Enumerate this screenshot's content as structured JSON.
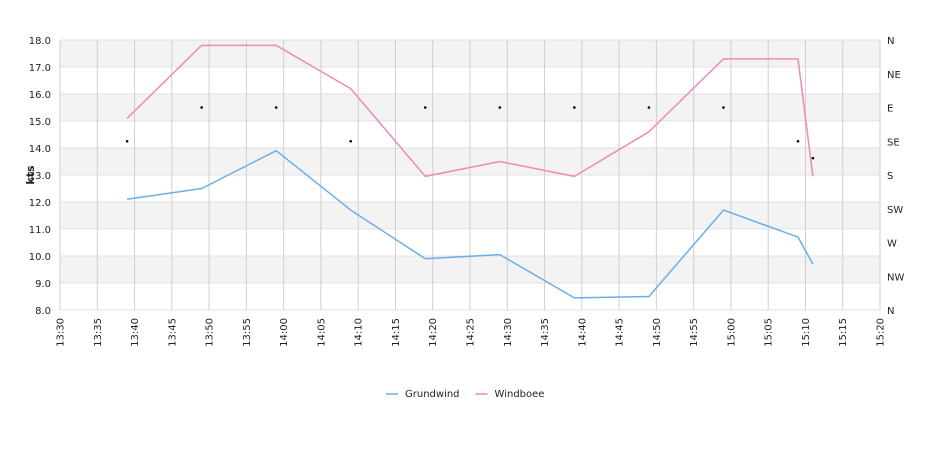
{
  "chart_data": {
    "type": "line",
    "ylabel": "kts",
    "ylim": [
      8.0,
      18.0
    ],
    "y_ticks": [
      "8.0",
      "9.0",
      "10.0",
      "11.0",
      "12.0",
      "13.0",
      "14.0",
      "15.0",
      "16.0",
      "17.0",
      "18.0"
    ],
    "x_range": [
      "13:30",
      "15:20"
    ],
    "x_ticks": [
      "13:30",
      "13:35",
      "13:40",
      "13:45",
      "13:50",
      "13:55",
      "14:00",
      "14:05",
      "14:10",
      "14:15",
      "14:20",
      "14:25",
      "14:30",
      "14:35",
      "14:40",
      "14:45",
      "14:50",
      "14:55",
      "15:00",
      "15:05",
      "15:10",
      "15:15",
      "15:20"
    ],
    "y2_ticks": [
      "N",
      "NE",
      "E",
      "SE",
      "S",
      "SW",
      "W",
      "NW",
      "N"
    ],
    "grid": true,
    "legend_position": "bottom",
    "series": [
      {
        "name": "Grundwind",
        "color": "#6aaeea",
        "points": [
          [
            "13:39",
            12.1
          ],
          [
            "13:49",
            12.5
          ],
          [
            "13:59",
            13.9
          ],
          [
            "14:09",
            11.7
          ],
          [
            "14:19",
            9.9
          ],
          [
            "14:29",
            10.05
          ],
          [
            "14:39",
            8.45
          ],
          [
            "14:49",
            8.5
          ],
          [
            "14:59",
            11.7
          ],
          [
            "15:09",
            10.7
          ],
          [
            "15:11",
            9.7
          ]
        ]
      },
      {
        "name": "Windboee",
        "color": "#ef88b8",
        "points": [
          [
            "13:39",
            15.1
          ],
          [
            "13:49",
            17.8
          ],
          [
            "13:59",
            17.8
          ],
          [
            "14:09",
            16.2
          ],
          [
            "14:19",
            12.95
          ],
          [
            "14:29",
            13.5
          ],
          [
            "14:39",
            12.95
          ],
          [
            "14:49",
            14.6
          ],
          [
            "14:59",
            17.3
          ],
          [
            "15:09",
            17.3
          ],
          [
            "15:11",
            12.95
          ]
        ]
      },
      {
        "name": "direction",
        "color": "#000000",
        "points": [
          [
            "13:39",
            225
          ],
          [
            "13:49",
            270
          ],
          [
            "13:59",
            270
          ],
          [
            "14:09",
            225
          ],
          [
            "14:19",
            270
          ],
          [
            "14:29",
            270
          ],
          [
            "14:39",
            270
          ],
          [
            "14:49",
            270
          ],
          [
            "14:59",
            270
          ],
          [
            "15:09",
            225
          ],
          [
            "15:11",
            202.5
          ]
        ]
      }
    ]
  }
}
